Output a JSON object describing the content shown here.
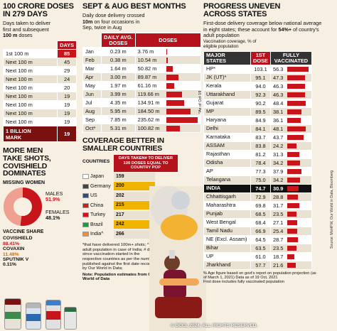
{
  "doses": {
    "title_a": "100 CRORE DOSES",
    "title_b": "IN 279 DAYS",
    "subtitle_a": "Days taken to deliver",
    "subtitle_b": "first and subsequent",
    "subtitle_c": "100 m",
    "subtitle_d": " doses",
    "col_header": "DAYS",
    "rows": [
      {
        "label": "1st 100 m",
        "days": "85"
      },
      {
        "label": "Next 100 m",
        "days": "45"
      },
      {
        "label": "Next 100 m",
        "days": "29"
      },
      {
        "label": "Next 100 m",
        "days": "24"
      },
      {
        "label": "Next 100 m",
        "days": "20"
      },
      {
        "label": "Next 100 m",
        "days": "19"
      },
      {
        "label": "Next 100 m",
        "days": "19"
      },
      {
        "label": "Next 100 m",
        "days": "19"
      },
      {
        "label": "Next 100 m",
        "days": "19"
      }
    ],
    "mark_label_a": "1 BILLION",
    "mark_label_b": "MARK",
    "mark_days": "19"
  },
  "men": {
    "title_a": "MORE MEN",
    "title_b": "TAKE SHOTS,",
    "title_c": "COVISHIELD",
    "title_d": "DOMINATES",
    "missing": "MISSING WOMEN",
    "males_label": "MALES",
    "males_value": "51.9%",
    "females_label": "FEMALES",
    "females_value": "48.1%",
    "males_pct": 51.9
  },
  "share": {
    "title": "VACCINE SHARE",
    "items": [
      {
        "name": "COVISHIELD",
        "value": "88.41%"
      },
      {
        "name": "COVAXIN",
        "value": "11.48%"
      },
      {
        "name": "SPUTNIK V",
        "value": "0.11%"
      }
    ]
  },
  "months": {
    "title": "SEPT & AUG BEST MONTHS",
    "subtitle_a": "Daily dose delivery crossed",
    "subtitle_b": "10m",
    "subtitle_c": " on four occasions in",
    "subtitle_d": "Sep, twice in Aug",
    "col_avg_a": "DAILY AVG.",
    "col_avg_b": "DOSES",
    "col_doses": "DOSES",
    "rows": [
      {
        "m": "Jan",
        "avg": "0.23 m",
        "doses": "3.76 m",
        "v": 3.76
      },
      {
        "m": "Feb",
        "avg": "0.38 m",
        "doses": "10.54 m",
        "v": 10.54
      },
      {
        "m": "Mar",
        "avg": "1.64 m",
        "doses": "50.82 m",
        "v": 50.82
      },
      {
        "m": "Apr",
        "avg": "3.00 m",
        "doses": "89.87 m",
        "v": 89.87
      },
      {
        "m": "May",
        "avg": "1.97 m",
        "doses": "61.16 m",
        "v": 61.16
      },
      {
        "m": "Jun",
        "avg": "3.99 m",
        "doses": "119.66 m",
        "v": 119.66
      },
      {
        "m": "Jul",
        "avg": "4.35 m",
        "doses": "134.91 m",
        "v": 134.91
      },
      {
        "m": "Aug",
        "avg": "5.95 m",
        "doses": "184.50 m",
        "v": 184.5
      },
      {
        "m": "Sep",
        "avg": "7.85 m",
        "doses": "235.62 m",
        "v": 235.62
      },
      {
        "m": "Oct*",
        "avg": "5.31 m",
        "doses": "100.82 m",
        "v": 100.82
      }
    ],
    "note": "*As of Oct 19"
  },
  "countries": {
    "title_a": "COVERAGE BETTER IN",
    "title_b": "SMALLER COUNTRIES",
    "col_countries": "COUNTRIES",
    "col_days_a": "DAYS TAKEN# TO DELIVER",
    "col_days_b": "100 DOSES EQUAL TO COUNTRY POP",
    "rows": [
      {
        "name": "Japan",
        "days": "159"
      },
      {
        "name": "Germany",
        "days": "200"
      },
      {
        "name": "US",
        "days": "202"
      },
      {
        "name": "China",
        "days": "215"
      },
      {
        "name": "Turkey",
        "days": "217"
      },
      {
        "name": "Brazil",
        "days": "242"
      },
      {
        "name": "India^",
        "days": "266"
      }
    ],
    "note": "*that have delivered 100m+ shots; ^ adult population in case of India; # days since vaccination started in the respective countries as per the numbers published against the first date recorded by Our World in Data;",
    "source": "Note: Population estimates from Our World of Data"
  },
  "states": {
    "title_a": "PROGRESS UNEVEN",
    "title_b": "ACROSS STATES",
    "subtitle_a": "First-dose delivery coverage below national average in eight states; these account for ",
    "subtitle_b": "54%+",
    "subtitle_c": " of country's adult population",
    "caption_a": "Vaccination coverage, % of",
    "caption_b": "eligible population",
    "col_states_a": "MAJOR",
    "col_states_b": "STATES",
    "col_first_a": "1ST",
    "col_first_b": "DOSE",
    "col_full_a": "FULLY",
    "col_full_b": "VACCINATED",
    "rows": [
      {
        "s": "HP*",
        "d1": "103.1",
        "fv": "56.3"
      },
      {
        "s": "JK (UT)*",
        "d1": "95.1",
        "fv": "47.3"
      },
      {
        "s": "Kerala",
        "d1": "94.0",
        "fv": "46.3"
      },
      {
        "s": "Uttarakhand",
        "d1": "92.3",
        "fv": "46.3"
      },
      {
        "s": "Gujarat",
        "d1": "90.2",
        "fv": "48.4"
      },
      {
        "s": "MP",
        "d1": "89.5",
        "fv": "38.1"
      },
      {
        "s": "Haryana",
        "d1": "84.9",
        "fv": "36.1"
      },
      {
        "s": "Delhi",
        "d1": "84.1",
        "fv": "48.1"
      },
      {
        "s": "Karnataka",
        "d1": "83.7",
        "fv": "43.7"
      },
      {
        "s": "ASSAM",
        "d1": "83.8",
        "fv": "24.2"
      },
      {
        "s": "Rajasthan",
        "d1": "81.2",
        "fv": "31.3"
      },
      {
        "s": "Odisha",
        "d1": "78.4",
        "fv": "34.2"
      },
      {
        "s": "AP",
        "d1": "77.3",
        "fv": "37.9"
      },
      {
        "s": "Telangana",
        "d1": "75.0",
        "fv": "34.2"
      },
      {
        "s": "INDIA",
        "d1": "74.7",
        "fv": "30.9"
      },
      {
        "s": "Chhattisgarh",
        "d1": "72.9",
        "fv": "28.8"
      },
      {
        "s": "Maharashtra",
        "d1": "69.8",
        "fv": "31.7"
      },
      {
        "s": "Punjab",
        "d1": "68.5",
        "fv": "23.5"
      },
      {
        "s": "West Bengal",
        "d1": "68.4",
        "fv": "27.1"
      },
      {
        "s": "Tamil Nadu",
        "d1": "66.9",
        "fv": "25.4"
      },
      {
        "s": "NE (Excl. Assam)",
        "d1": "64.5",
        "fv": "28.7"
      },
      {
        "s": "Bihar",
        "d1": "63.5",
        "fv": "23.5"
      },
      {
        "s": "UP",
        "d1": "61.0",
        "fv": "18.7"
      },
      {
        "s": "Jharkhand",
        "d1": "57.7",
        "fv": "21.6"
      }
    ],
    "footnote_a": "% Age figure based on govt's report on population projection (as of March 1, 2021) Data as of 19 Oct, 2021",
    "footnote_b": "First dose includes fully vaccinated population"
  },
  "credits": "Source: MoHFW, Our World in Data, Bloomberg",
  "watermark": "© BCCL 2024. ALL RIGHTS RESERVED.",
  "colors": {
    "red": "#c8151b",
    "dark_red": "#7a1010",
    "cream": "#f6efe2",
    "navy": "#1b3d6e"
  }
}
